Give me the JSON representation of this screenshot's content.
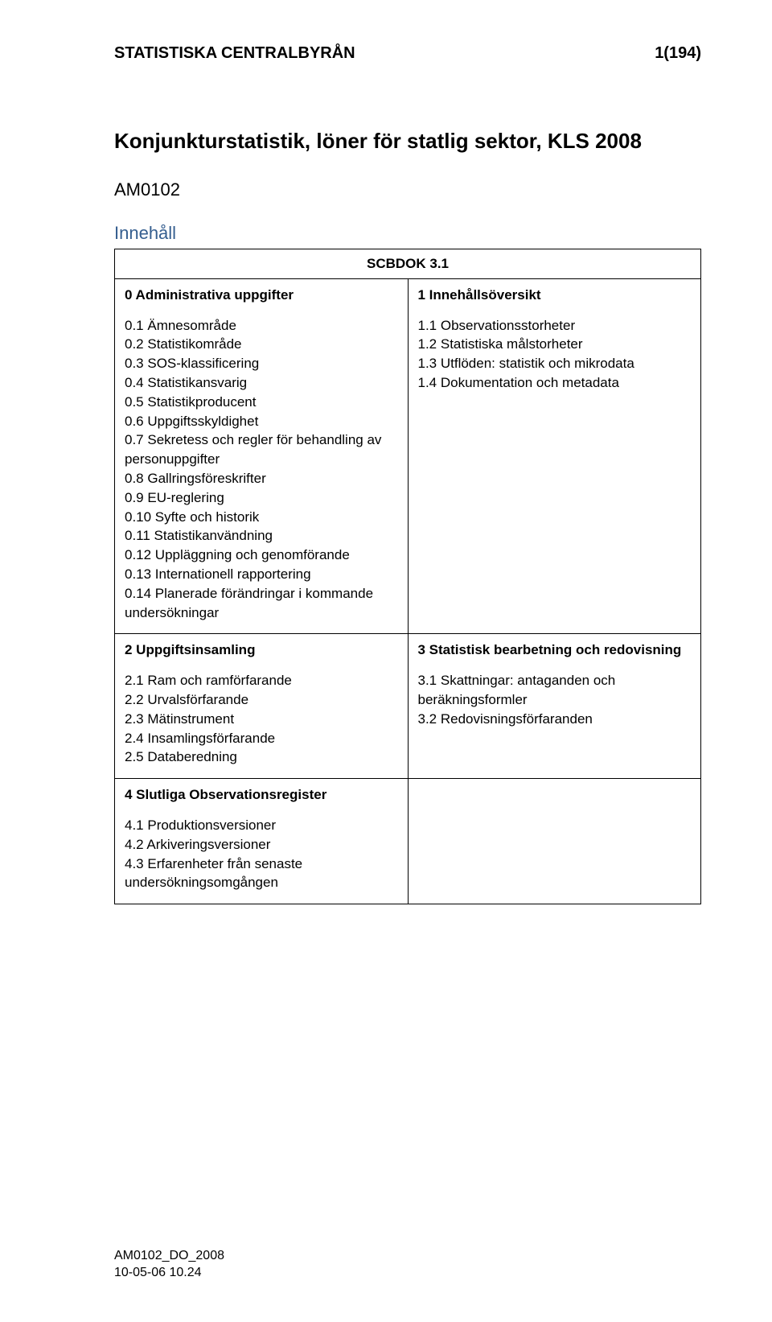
{
  "header": {
    "org": "STATISTISKA CENTRALBYRÅN",
    "page_no": "1(194)"
  },
  "title": "Konjunkturstatistik, löner för statlig sektor, KLS 2008",
  "code": "AM0102",
  "inner_heading": "Innehåll",
  "scbdok": "SCBDOK 3.1",
  "cells": {
    "r0c0": {
      "head": "0  Administrativa uppgifter",
      "items": [
        "0.1  Ämnesområde",
        "0.2  Statistikområde",
        "0.3  SOS-klassificering",
        "0.4  Statistikansvarig",
        "0.5  Statistikproducent",
        "0.6  Uppgiftsskyldighet",
        "0.7  Sekretess och regler för behandling av personuppgifter",
        "0.8  Gallringsföreskrifter",
        "0.9  EU-reglering",
        "0.10  Syfte och historik",
        "0.11  Statistikanvändning",
        "0.12  Uppläggning och genomförande",
        "0.13  Internationell rapportering",
        "0.14  Planerade förändringar i kommande undersökningar"
      ]
    },
    "r0c1": {
      "head": "1  Innehållsöversikt",
      "items": [
        "1.1  Observationsstorheter",
        "1.2  Statistiska målstorheter",
        "1.3  Utflöden: statistik och mikrodata",
        "1.4  Dokumentation och metadata"
      ]
    },
    "r1c0": {
      "head": "2  Uppgiftsinsamling",
      "items": [
        "2.1  Ram och ramförfarande",
        "2.2  Urvalsförfarande",
        "2.3  Mätinstrument",
        "2.4  Insamlingsförfarande",
        "2.5  Databeredning"
      ]
    },
    "r1c1": {
      "head": "3  Statistisk bearbetning och redovisning",
      "items": [
        "3.1  Skattningar: antaganden och beräkningsformler",
        "3.2  Redovisningsförfaranden"
      ]
    },
    "r2c0": {
      "head": "4 Slutliga Observationsregister",
      "items": [
        "4.1  Produktionsversioner",
        "4.2  Arkiveringsversioner",
        "4.3  Erfarenheter från senaste undersökningsomgången"
      ]
    }
  },
  "footer": {
    "line1": "AM0102_DO_2008",
    "line2": "10-05-06 10.24"
  },
  "colors": {
    "text": "#000000",
    "heading_blue": "#355e8f",
    "background": "#ffffff",
    "border": "#000000"
  }
}
